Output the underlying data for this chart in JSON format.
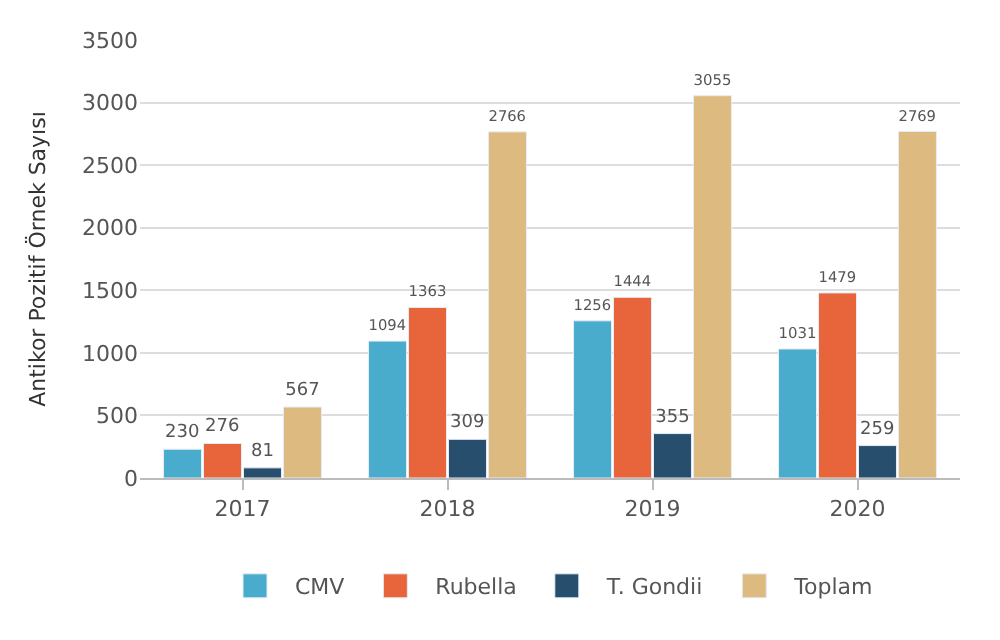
{
  "chart_data": {
    "type": "bar",
    "ylabel": "Antikor Pozitif Örnek Sayısı",
    "categories": [
      "2017",
      "2018",
      "2019",
      "2020"
    ],
    "series": [
      {
        "name": "CMV",
        "color": "#4aaccd",
        "values": [
          230,
          1094,
          1256,
          1031
        ]
      },
      {
        "name": "Rubella",
        "color": "#e8643b",
        "values": [
          276,
          1363,
          1444,
          1479
        ]
      },
      {
        "name": "T. Gondii",
        "color": "#274e6d",
        "values": [
          81,
          309,
          355,
          259
        ]
      },
      {
        "name": "Toplam",
        "color": "#ddbb80",
        "values": [
          567,
          2766,
          3055,
          2769
        ]
      }
    ],
    "ylim": [
      0,
      3500
    ],
    "yticks": [
      0,
      500,
      1000,
      1500,
      2000,
      2500,
      3000,
      3500
    ],
    "grid": "y",
    "legend": "bottom",
    "data_labels": true
  }
}
